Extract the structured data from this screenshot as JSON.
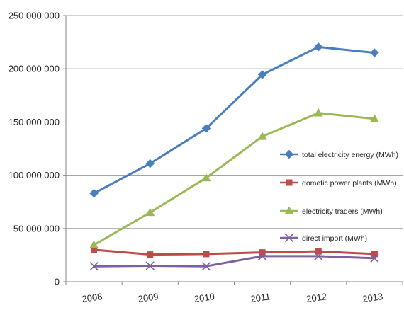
{
  "chart_data": {
    "type": "line",
    "title": "",
    "xlabel": "",
    "ylabel": "",
    "categories": [
      "2008",
      "2009",
      "2010",
      "2011",
      "2012",
      "2013"
    ],
    "ylim": [
      0,
      250000000
    ],
    "y_ticks": [
      {
        "value": 0,
        "label": "0"
      },
      {
        "value": 50000000,
        "label": "50 000 000"
      },
      {
        "value": 100000000,
        "label": "100 000 000"
      },
      {
        "value": 150000000,
        "label": "150 000 000"
      },
      {
        "value": 200000000,
        "label": "200 000 000"
      },
      {
        "value": 250000000,
        "label": "250 000 000"
      }
    ],
    "grid": "horizontal",
    "legend_position": "right",
    "series": [
      {
        "name": "total electricity energy (MWh)",
        "color": "#4A7EBB",
        "marker": "diamond",
        "values": [
          83000000,
          111000000,
          144000000,
          194500000,
          220500000,
          215000000
        ]
      },
      {
        "name": "dometic power plants (MWh)",
        "color": "#BE4B48",
        "marker": "square",
        "values": [
          30000000,
          25500000,
          26000000,
          27500000,
          28500000,
          26000000
        ]
      },
      {
        "name": "electricity traders (MWh)",
        "color": "#98B954",
        "marker": "triangle",
        "values": [
          34500000,
          65000000,
          97500000,
          136500000,
          158500000,
          153000000
        ]
      },
      {
        "name": "direct import (MWh)",
        "color": "#7D60A0",
        "marker": "x",
        "values": [
          14500000,
          15000000,
          14500000,
          24000000,
          24000000,
          22000000
        ]
      }
    ]
  }
}
